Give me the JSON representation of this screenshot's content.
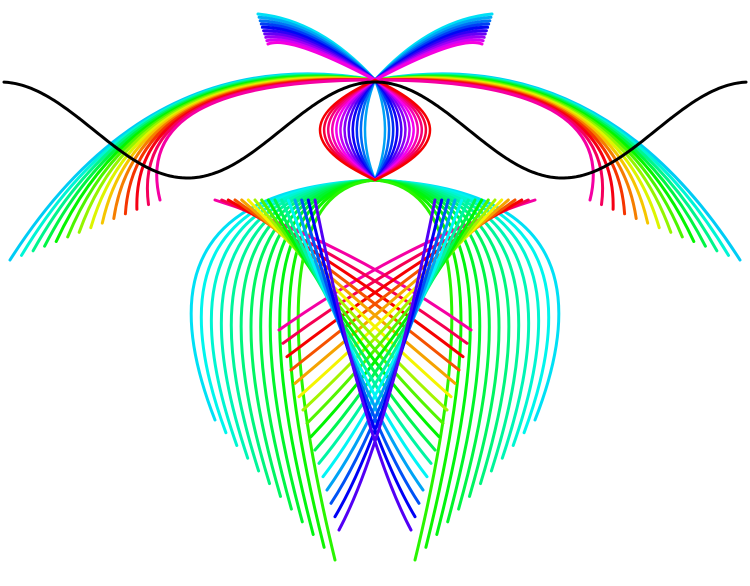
{
  "artwork": {
    "background": "#ffffff",
    "description_colors": {
      "wave": "#000000",
      "palette": [
        "#ff0000",
        "#ff8000",
        "#ffff00",
        "#80ff00",
        "#00ff00",
        "#00ff80",
        "#00ffff",
        "#0080ff",
        "#0000ff",
        "#8000ff",
        "#ff00ff",
        "#ff0080"
      ]
    }
  }
}
